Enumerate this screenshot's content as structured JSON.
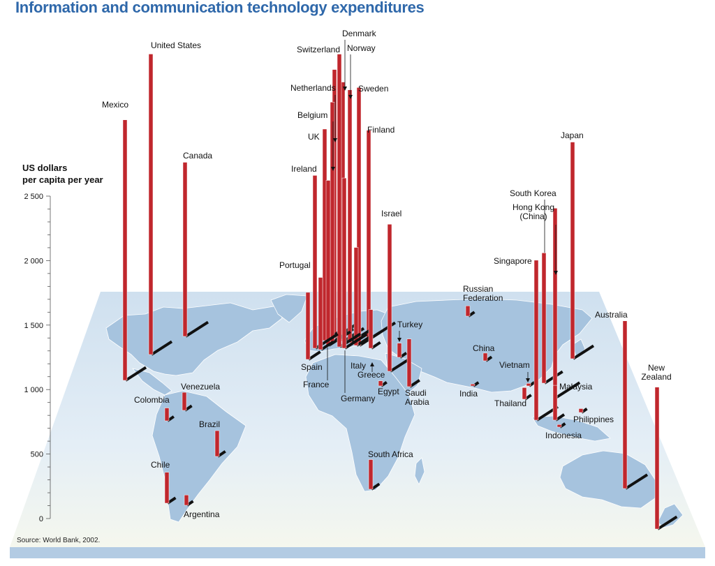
{
  "title": "Information and communication technology expenditures",
  "source": "Source: World Bank, 2002.",
  "chart_data": {
    "type": "bar",
    "title": "Information and communication technology expenditures",
    "ylabel": "US dollars per capita per year",
    "ylabel_lines": [
      "US dollars",
      "per capita per year"
    ],
    "ylim": [
      0,
      2500
    ],
    "ticks": [
      {
        "value": 0,
        "label": "0"
      },
      {
        "value": 500,
        "label": "500"
      },
      {
        "value": 1000,
        "label": "1 000"
      },
      {
        "value": 1500,
        "label": "1 500"
      },
      {
        "value": 2000,
        "label": "2 000"
      },
      {
        "value": 2500,
        "label": "2 500"
      }
    ],
    "countries": [
      {
        "name": "United States",
        "value": 2330,
        "labels": [
          "United States"
        ]
      },
      {
        "name": "Mexico",
        "value": 2020,
        "labels": [
          "Mexico"
        ]
      },
      {
        "name": "Canada",
        "value": 1350,
        "labels": [
          "Canada"
        ]
      },
      {
        "name": "Venezuela",
        "value": 140,
        "labels": [
          "Venezuela"
        ]
      },
      {
        "name": "Colombia",
        "value": 100,
        "labels": [
          "Colombia"
        ]
      },
      {
        "name": "Brazil",
        "value": 200,
        "labels": [
          "Brazil"
        ]
      },
      {
        "name": "Chile",
        "value": 240,
        "labels": [
          "Chile"
        ]
      },
      {
        "name": "Argentina",
        "value": 80,
        "labels": [
          "Argentina"
        ]
      },
      {
        "name": "Switzerland",
        "value": 2270,
        "labels": [
          "Switzerland"
        ]
      },
      {
        "name": "Denmark",
        "value": 2010,
        "labels": [
          "Denmark"
        ]
      },
      {
        "name": "Norway",
        "value": 1960,
        "labels": [
          "Norway"
        ]
      },
      {
        "name": "Sweden",
        "value": 2000,
        "labels": [
          "Sweden"
        ]
      },
      {
        "name": "Netherlands",
        "value": 2080,
        "labels": [
          "Netherlands"
        ]
      },
      {
        "name": "Belgium",
        "value": 1860,
        "labels": [
          "Belgium"
        ]
      },
      {
        "name": "UK",
        "value": 1640,
        "labels": [
          "UK"
        ]
      },
      {
        "name": "Ireland",
        "value": 1340,
        "labels": [
          "Ireland"
        ]
      },
      {
        "name": "Finland",
        "value": 1620,
        "labels": [
          "Finland"
        ]
      },
      {
        "name": "Portugal",
        "value": 520,
        "labels": [
          "Portugal"
        ]
      },
      {
        "name": "Spain",
        "value": 560,
        "labels": [
          "Spain"
        ]
      },
      {
        "name": "France",
        "value": 1280,
        "labels": [
          "France"
        ]
      },
      {
        "name": "Germany",
        "value": 1320,
        "labels": [
          "Germany"
        ]
      },
      {
        "name": "Italy",
        "value": 760,
        "labels": [
          "Italy"
        ]
      },
      {
        "name": "Israel",
        "value": 1140,
        "labels": [
          "Israel"
        ]
      },
      {
        "name": "Greece",
        "value": 300,
        "labels": [
          "Greece"
        ]
      },
      {
        "name": "Turkey",
        "value": 110,
        "labels": [
          "Turkey"
        ]
      },
      {
        "name": "Egypt",
        "value": 40,
        "labels": [
          "Egypt"
        ]
      },
      {
        "name": "Saudi Arabia",
        "value": 370,
        "labels": [
          "Saudi",
          "Arabia"
        ]
      },
      {
        "name": "Russian Federation",
        "value": 80,
        "labels": [
          "Russian",
          "Federation"
        ]
      },
      {
        "name": "South Africa",
        "value": 230,
        "labels": [
          "South Africa"
        ]
      },
      {
        "name": "China",
        "value": 60,
        "labels": [
          "China"
        ]
      },
      {
        "name": "India",
        "value": 15,
        "labels": [
          "India"
        ]
      },
      {
        "name": "Vietnam",
        "value": 20,
        "labels": [
          "Vietnam"
        ]
      },
      {
        "name": "Thailand",
        "value": 90,
        "labels": [
          "Thailand"
        ]
      },
      {
        "name": "Singapore",
        "value": 1240,
        "labels": [
          "Singapore"
        ]
      },
      {
        "name": "South Korea",
        "value": 1010,
        "labels": [
          "South Korea"
        ]
      },
      {
        "name": "Hong Kong (China)",
        "value": 1470,
        "labels": [
          "Hong Kong",
          "(China)"
        ]
      },
      {
        "name": "Japan",
        "value": 1680,
        "labels": [
          "Japan"
        ]
      },
      {
        "name": "Malaysia",
        "value": 270,
        "labels": [
          "Malaysia"
        ]
      },
      {
        "name": "Philippines",
        "value": 30,
        "labels": [
          "Philippines"
        ]
      },
      {
        "name": "Indonesia",
        "value": 20,
        "labels": [
          "Indonesia"
        ]
      },
      {
        "name": "Australia",
        "value": 1300,
        "labels": [
          "Australia"
        ]
      },
      {
        "name": "New Zealand",
        "value": 1100,
        "labels": [
          "New",
          "Zealand"
        ]
      }
    ]
  }
}
